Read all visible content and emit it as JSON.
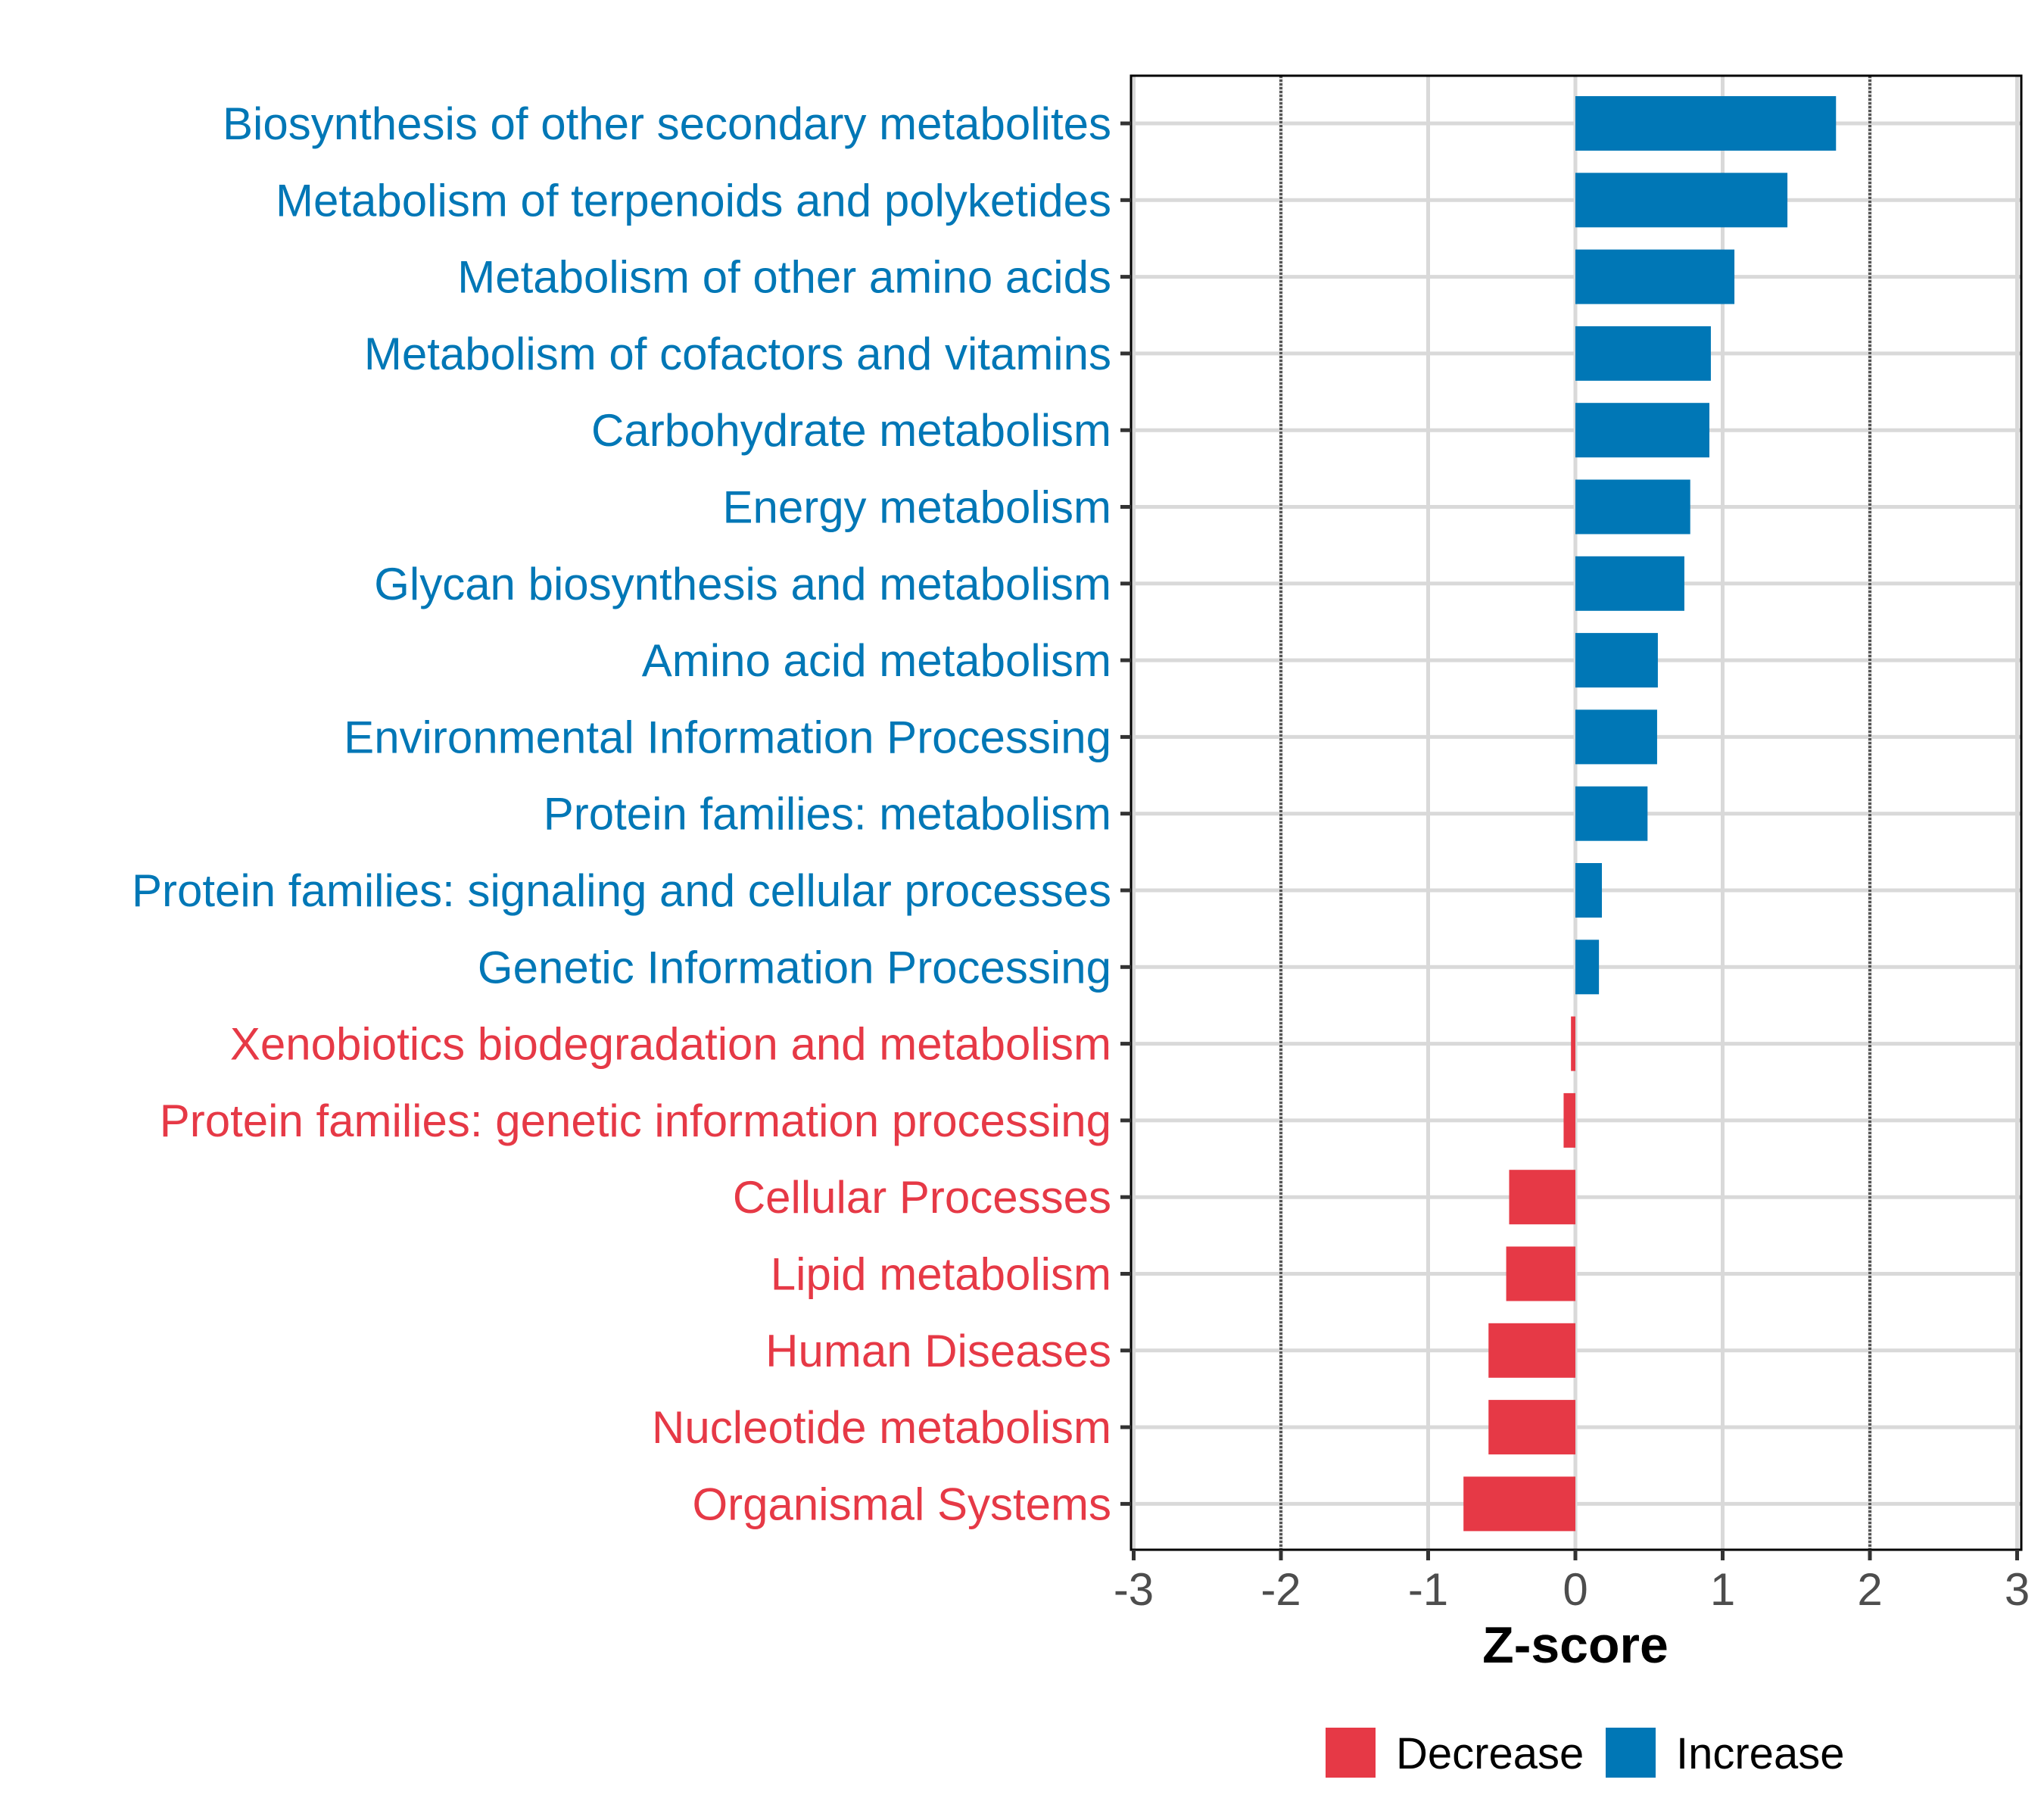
{
  "chart_data": {
    "type": "bar",
    "orientation": "horizontal",
    "title": "",
    "xlabel": "Z-score",
    "ylabel": "",
    "xlim": [
      -3,
      3
    ],
    "xticks": [
      "-3",
      "-2",
      "-1",
      "0",
      "1",
      "2",
      "3"
    ],
    "reference_lines": [
      -2,
      2
    ],
    "grid": true,
    "categories": [
      "Biosynthesis of other secondary metabolites",
      "Metabolism of terpenoids and polyketides",
      "Metabolism of other amino acids",
      "Metabolism of cofactors and vitamins",
      "Carbohydrate metabolism",
      "Energy metabolism",
      "Glycan biosynthesis and metabolism",
      "Amino acid metabolism",
      "Environmental Information Processing",
      "Protein families: metabolism",
      "Protein families: signaling and cellular processes",
      "Genetic Information Processing",
      "Xenobiotics biodegradation and metabolism",
      "Protein families: genetic information processing",
      "Cellular Processes",
      "Lipid metabolism",
      "Human Diseases",
      "Nucleotide metabolism",
      "Organismal Systems"
    ],
    "values": [
      1.77,
      1.44,
      1.08,
      0.92,
      0.91,
      0.78,
      0.74,
      0.56,
      0.555,
      0.49,
      0.18,
      0.16,
      -0.03,
      -0.08,
      -0.45,
      -0.47,
      -0.59,
      -0.59,
      -0.76
    ],
    "legend": {
      "placement": "bottom",
      "entries": [
        {
          "label": "Decrease",
          "color": "#E63946"
        },
        {
          "label": "Increase",
          "color": "#0077B6"
        }
      ]
    }
  }
}
